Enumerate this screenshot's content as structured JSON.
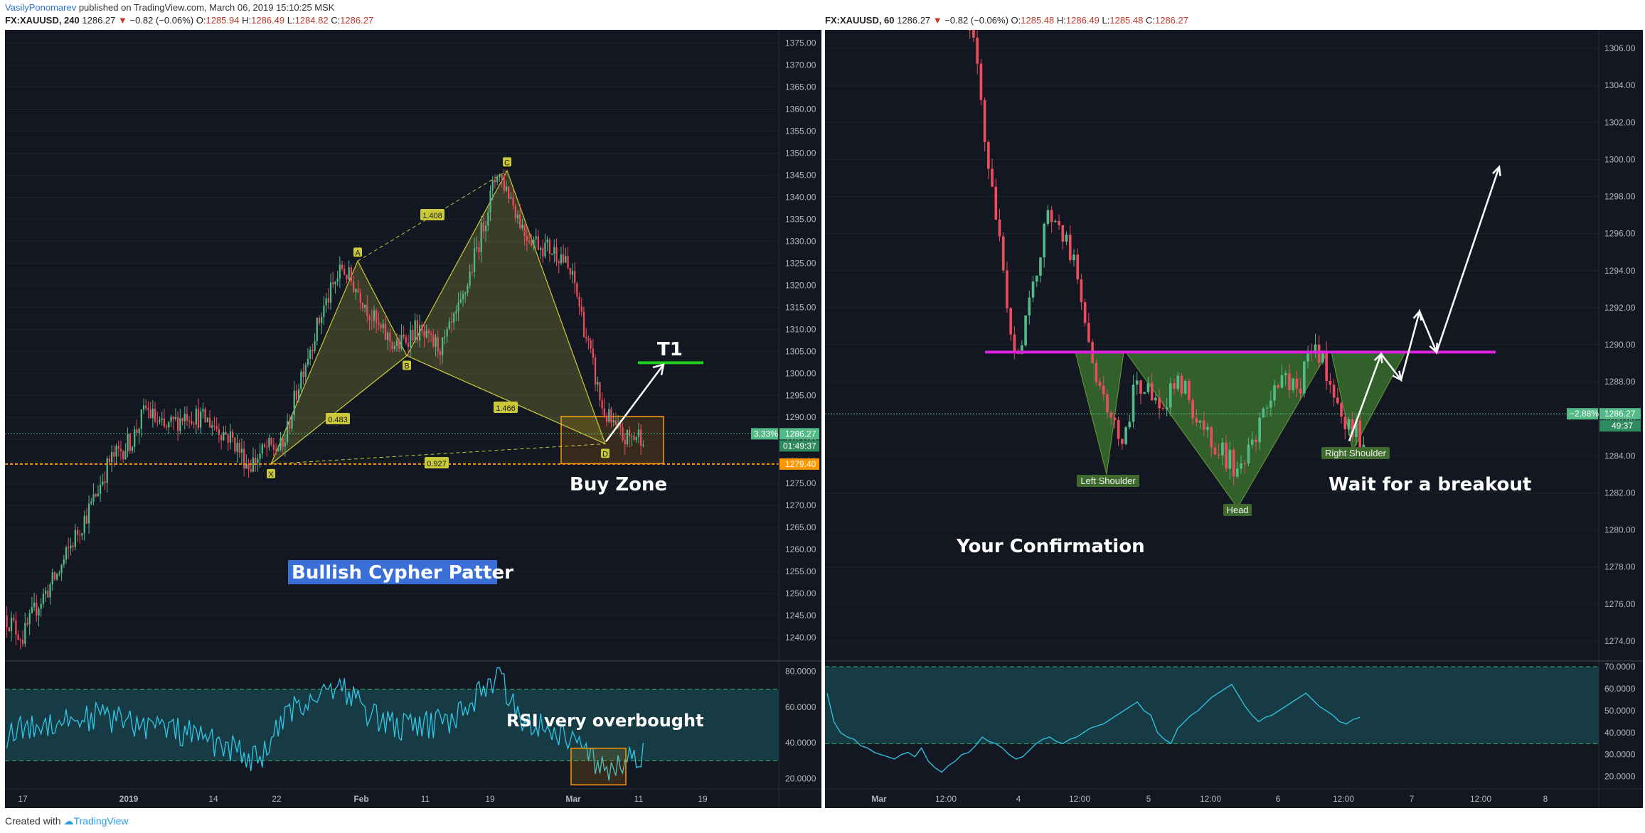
{
  "header": {
    "author": "VasilyPonomarev",
    "published_text": " published on TradingView.com, March 06, 2019 15:10:25 MSK",
    "left_symbol": {
      "symbol": "FX:XAUUSD, 240",
      "price": "1286.27",
      "change": "−0.82 (−0.06%)",
      "o_label": "O:",
      "o": "1285.94",
      "h_label": "H:",
      "h": "1286.49",
      "l_label": "L:",
      "l": "1284.82",
      "c_label": "C:",
      "c": "1286.27"
    },
    "right_symbol": {
      "symbol": "FX:XAUUSD, 60",
      "price": "1286.27",
      "change": "−0.82 (−0.06%)",
      "o_label": "O:",
      "o": "1285.48",
      "h_label": "H:",
      "h": "1286.49",
      "l_label": "L:",
      "l": "1285.48",
      "c_label": "C:",
      "c": "1286.27"
    }
  },
  "footer": {
    "created_with": "Created with ",
    "brand": "TradingView"
  },
  "colors": {
    "background": "#131722",
    "up": "#53b987",
    "down": "#eb4d5c",
    "pattern": "#c9c93a",
    "hs_fill": "#3d7a2e",
    "neckline": "#e020e0",
    "rsi_line": "#2ec7e6",
    "rsi_band": "#1a4b52",
    "support": "#ff9800",
    "target": "#1fd01f"
  },
  "chart_data": [
    {
      "type": "candlestick",
      "name": "left-main",
      "timeframe": "240",
      "ylim": [
        1235,
        1378
      ],
      "y_ticks": [
        1240,
        1245,
        1250,
        1255,
        1260,
        1265,
        1270,
        1275,
        1280,
        1285,
        1290,
        1295,
        1300,
        1305,
        1310,
        1315,
        1320,
        1325,
        1330,
        1335,
        1340,
        1345,
        1350,
        1355,
        1360,
        1365,
        1370,
        1375
      ],
      "y_tick_labels": [
        "1240.00",
        "1245.00",
        "1250.00",
        "1255.00",
        "1260.00",
        "1265.00",
        "1270.00",
        "1275.00",
        "1280.00",
        "1285.00",
        "1290.00",
        "1295.00",
        "1300.00",
        "1305.00",
        "1310.00",
        "1315.00",
        "1320.00",
        "1325.00",
        "1330.00",
        "1335.00",
        "1340.00",
        "1345.00",
        "1350.00",
        "1355.00",
        "1360.00",
        "1365.00",
        "1370.00",
        "1375.00"
      ],
      "x_ticks": [
        "17",
        "2019",
        "14",
        "22",
        "Feb",
        "11",
        "19",
        "Mar",
        "11",
        "19"
      ],
      "price_keypoints": [
        [
          0,
          1245
        ],
        [
          8,
          1240
        ],
        [
          14,
          1247
        ],
        [
          24,
          1255
        ],
        [
          30,
          1262
        ],
        [
          38,
          1270
        ],
        [
          46,
          1280
        ],
        [
          56,
          1285
        ],
        [
          62,
          1292
        ],
        [
          70,
          1287
        ],
        [
          80,
          1291
        ],
        [
          90,
          1289
        ],
        [
          100,
          1285
        ],
        [
          107,
          1279
        ],
        [
          115,
          1283
        ],
        [
          122,
          1283
        ],
        [
          130,
          1300
        ],
        [
          140,
          1315
        ],
        [
          148,
          1324
        ],
        [
          156,
          1318
        ],
        [
          164,
          1310
        ],
        [
          172,
          1306
        ],
        [
          180,
          1310
        ],
        [
          186,
          1307
        ],
        [
          192,
          1306
        ],
        [
          200,
          1315
        ],
        [
          208,
          1330
        ],
        [
          216,
          1346
        ],
        [
          222,
          1340
        ],
        [
          228,
          1332
        ],
        [
          236,
          1329
        ],
        [
          244,
          1327
        ],
        [
          250,
          1320
        ],
        [
          256,
          1306
        ],
        [
          262,
          1292
        ],
        [
          268,
          1287
        ],
        [
          272,
          1285
        ],
        [
          278,
          1286
        ]
      ],
      "pattern": {
        "name": "Bullish Cypher Patter",
        "points": {
          "X": 1279.4,
          "A": 1325.5,
          "B": 1304.0,
          "C": 1346.0,
          "D": 1284.0
        },
        "ratios": [
          "1.408",
          "0.483",
          "1.466",
          "0.927"
        ]
      },
      "last_price": {
        "value": 1286.27,
        "label": "1286.27",
        "pct": "3.33%",
        "countdown": "01:49:37"
      },
      "support": {
        "value": 1279.4,
        "label": "1279.40"
      },
      "target": {
        "value": 1302.4,
        "label": "T1"
      },
      "annotations": {
        "buy_zone": "Buy Zone",
        "title": "Bullish Cypher Patter"
      }
    },
    {
      "type": "line",
      "name": "left-rsi",
      "ylim": [
        15,
        85
      ],
      "y_ticks": [
        20,
        40,
        60,
        80
      ],
      "y_tick_labels": [
        "20.0000",
        "40.0000",
        "60.0000",
        "80.0000"
      ],
      "bands": [
        30,
        70
      ],
      "annotation": "RSI very overbought"
    },
    {
      "type": "candlestick",
      "name": "right-main",
      "timeframe": "60",
      "ylim": [
        1273,
        1307
      ],
      "y_ticks": [
        1274,
        1276,
        1278,
        1280,
        1282,
        1284,
        1286,
        1288,
        1290,
        1292,
        1294,
        1296,
        1298,
        1300,
        1302,
        1304,
        1306
      ],
      "y_tick_labels": [
        "1274.00",
        "1276.00",
        "1278.00",
        "1280.00",
        "1282.00",
        "1284.00",
        "1286.00",
        "1288.00",
        "1290.00",
        "1292.00",
        "1294.00",
        "1296.00",
        "1298.00",
        "1300.00",
        "1302.00",
        "1304.00",
        "1306.00"
      ],
      "x_ticks": [
        "Mar",
        "12:00",
        "4",
        "12:00",
        "5",
        "12:00",
        "6",
        "12:00",
        "7",
        "12:00",
        "8"
      ],
      "price_keypoints": [
        [
          0,
          1311
        ],
        [
          4,
          1309
        ],
        [
          8,
          1305
        ],
        [
          12,
          1298
        ],
        [
          15,
          1294
        ],
        [
          17,
          1290
        ],
        [
          20,
          1290
        ],
        [
          24,
          1294
        ],
        [
          27,
          1297
        ],
        [
          31,
          1296
        ],
        [
          35,
          1294
        ],
        [
          39,
          1289
        ],
        [
          43,
          1286
        ],
        [
          47,
          1285
        ],
        [
          51,
          1288
        ],
        [
          55,
          1287
        ],
        [
          59,
          1287
        ],
        [
          63,
          1288
        ],
        [
          67,
          1286
        ],
        [
          71,
          1285
        ],
        [
          75,
          1284
        ],
        [
          79,
          1283
        ],
        [
          83,
          1285
        ],
        [
          87,
          1287
        ],
        [
          91,
          1288
        ],
        [
          95,
          1288
        ],
        [
          99,
          1290
        ],
        [
          103,
          1288
        ],
        [
          107,
          1286
        ],
        [
          111,
          1285
        ]
      ],
      "neckline": 1289.6,
      "labels": {
        "left_shoulder": "Left Shoulder",
        "head": "Head",
        "right_shoulder": "Right Shoulder"
      },
      "last_price": {
        "value": 1286.27,
        "label": "1286.27",
        "pct": "−2.88%",
        "countdown": "49:37"
      },
      "annotations": {
        "confirmation": "Your Confirmation",
        "breakout": "Wait for a breakout"
      }
    },
    {
      "type": "line",
      "name": "right-rsi",
      "ylim": [
        15,
        72
      ],
      "y_ticks": [
        20,
        30,
        40,
        50,
        60,
        70
      ],
      "y_tick_labels": [
        "20.0000",
        "30.0000",
        "40.0000",
        "50.0000",
        "60.0000",
        "70.0000"
      ],
      "bands": [
        35,
        70
      ],
      "values": [
        58,
        45,
        40,
        38,
        37,
        34,
        33,
        31,
        30,
        29,
        28,
        30,
        31,
        29,
        33,
        27,
        24,
        22,
        25,
        27,
        30,
        31,
        34,
        38,
        36,
        35,
        33,
        30,
        28,
        29,
        32,
        35,
        37,
        38,
        36,
        35,
        37,
        38,
        40,
        42,
        43,
        44,
        46,
        48,
        50,
        52,
        54,
        50,
        48,
        40,
        37,
        35,
        42,
        45,
        48,
        50,
        53,
        56,
        58,
        60,
        62,
        57,
        52,
        48,
        45,
        47,
        48,
        50,
        52,
        54,
        56,
        58,
        55,
        52,
        50,
        48,
        45,
        44,
        46,
        47
      ]
    }
  ]
}
